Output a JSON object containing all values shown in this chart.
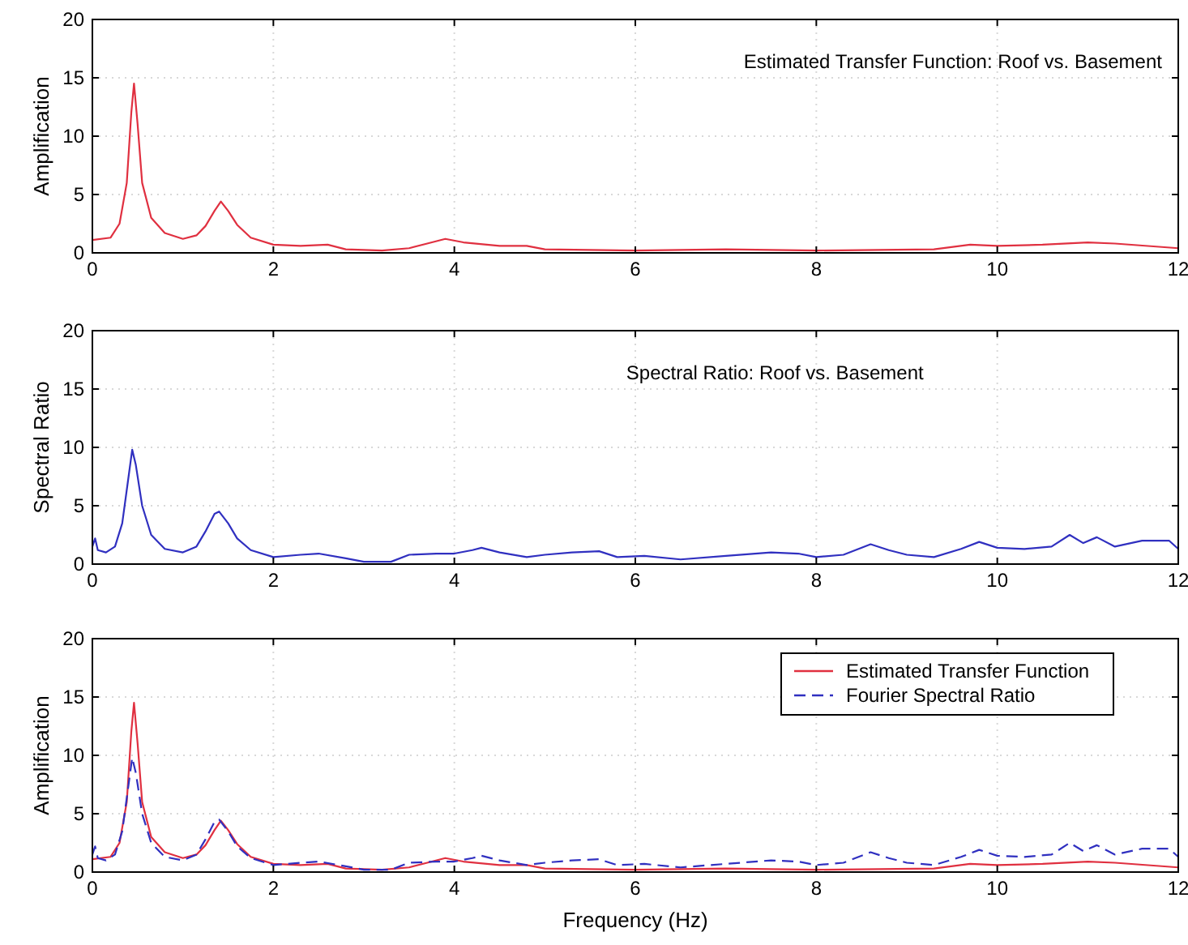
{
  "chart_data": [
    {
      "type": "line",
      "ylabel": "Amplification",
      "annotations": [
        "Estimated Transfer Function: Roof vs. Basement"
      ],
      "xlim": [
        0,
        12
      ],
      "xticks": [
        0,
        2,
        4,
        6,
        8,
        10,
        12
      ],
      "ylim": [
        0,
        20
      ],
      "yticks": [
        0,
        5,
        10,
        15,
        20
      ],
      "grid": true,
      "legend": false,
      "series": [
        {
          "color": "#e03040",
          "x": [
            0,
            0.2,
            0.3,
            0.38,
            0.43,
            0.46,
            0.5,
            0.55,
            0.65,
            0.8,
            1.0,
            1.15,
            1.25,
            1.35,
            1.42,
            1.5,
            1.6,
            1.75,
            2.0,
            2.3,
            2.6,
            2.8,
            3.2,
            3.5,
            3.7,
            3.9,
            4.1,
            4.5,
            4.8,
            5.0,
            6,
            7,
            8,
            9.3,
            9.7,
            10,
            10.5,
            11,
            11.3,
            12
          ],
          "values": [
            1.1,
            1.3,
            2.5,
            6,
            12,
            14.5,
            11,
            6,
            3,
            1.7,
            1.2,
            1.5,
            2.3,
            3.6,
            4.4,
            3.6,
            2.4,
            1.3,
            0.7,
            0.6,
            0.7,
            0.3,
            0.2,
            0.4,
            0.8,
            1.2,
            0.9,
            0.6,
            0.6,
            0.3,
            0.2,
            0.3,
            0.2,
            0.3,
            0.7,
            0.6,
            0.7,
            0.9,
            0.8,
            0.4
          ]
        }
      ]
    },
    {
      "type": "line",
      "ylabel": "Spectral Ratio",
      "annotations": [
        "Spectral Ratio: Roof vs. Basement"
      ],
      "xlim": [
        0,
        12
      ],
      "xticks": [
        0,
        2,
        4,
        6,
        8,
        10,
        12
      ],
      "ylim": [
        0,
        20
      ],
      "yticks": [
        0,
        5,
        10,
        15,
        20
      ],
      "grid": true,
      "legend": false,
      "series": [
        {
          "color": "#3030c0",
          "x": [
            0,
            0.03,
            0.06,
            0.15,
            0.25,
            0.33,
            0.4,
            0.44,
            0.48,
            0.55,
            0.65,
            0.8,
            1.0,
            1.15,
            1.25,
            1.35,
            1.4,
            1.5,
            1.6,
            1.75,
            2.0,
            2.3,
            2.5,
            2.8,
            3.0,
            3.3,
            3.5,
            3.8,
            4.0,
            4.2,
            4.3,
            4.5,
            4.8,
            5.0,
            5.3,
            5.6,
            5.8,
            6.1,
            6.5,
            7.0,
            7.5,
            7.8,
            8.0,
            8.3,
            8.6,
            8.8,
            9.0,
            9.3,
            9.6,
            9.8,
            10.0,
            10.3,
            10.6,
            10.8,
            10.95,
            11.1,
            11.3,
            11.6,
            11.9,
            12
          ],
          "values": [
            1.5,
            2.2,
            1.2,
            1.0,
            1.5,
            3.5,
            7.5,
            9.8,
            8.5,
            5,
            2.5,
            1.3,
            1.0,
            1.5,
            2.8,
            4.3,
            4.5,
            3.5,
            2.2,
            1.2,
            0.6,
            0.8,
            0.9,
            0.5,
            0.2,
            0.2,
            0.8,
            0.9,
            0.9,
            1.2,
            1.4,
            1.0,
            0.6,
            0.8,
            1.0,
            1.1,
            0.6,
            0.7,
            0.4,
            0.7,
            1.0,
            0.9,
            0.6,
            0.8,
            1.7,
            1.2,
            0.8,
            0.6,
            1.3,
            1.9,
            1.4,
            1.3,
            1.5,
            2.5,
            1.8,
            2.3,
            1.5,
            2.0,
            2.0,
            1.3
          ]
        }
      ]
    },
    {
      "type": "line",
      "xlabel": "Frequency (Hz)",
      "ylabel": "Amplification",
      "xlim": [
        0,
        12
      ],
      "xticks": [
        0,
        2,
        4,
        6,
        8,
        10,
        12
      ],
      "ylim": [
        0,
        20
      ],
      "yticks": [
        0,
        5,
        10,
        15,
        20
      ],
      "grid": true,
      "legend": "top right",
      "series": [
        {
          "name": "Estimated Transfer Function",
          "color": "#e03040",
          "line_style": "solid",
          "x": [
            0,
            0.2,
            0.3,
            0.38,
            0.43,
            0.46,
            0.5,
            0.55,
            0.65,
            0.8,
            1.0,
            1.15,
            1.25,
            1.35,
            1.42,
            1.5,
            1.6,
            1.75,
            2.0,
            2.3,
            2.6,
            2.8,
            3.2,
            3.5,
            3.7,
            3.9,
            4.1,
            4.5,
            4.8,
            5.0,
            6,
            7,
            8,
            9.3,
            9.7,
            10,
            10.5,
            11,
            11.3,
            12
          ],
          "values": [
            1.1,
            1.3,
            2.5,
            6,
            12,
            14.5,
            11,
            6,
            3,
            1.7,
            1.2,
            1.5,
            2.3,
            3.6,
            4.4,
            3.6,
            2.4,
            1.3,
            0.7,
            0.6,
            0.7,
            0.3,
            0.2,
            0.4,
            0.8,
            1.2,
            0.9,
            0.6,
            0.6,
            0.3,
            0.2,
            0.3,
            0.2,
            0.3,
            0.7,
            0.6,
            0.7,
            0.9,
            0.8,
            0.4
          ]
        },
        {
          "name": "Fourier Spectral Ratio",
          "color": "#3030c0",
          "line_style": "dashed",
          "x": [
            0,
            0.03,
            0.06,
            0.15,
            0.25,
            0.33,
            0.4,
            0.44,
            0.48,
            0.55,
            0.65,
            0.8,
            1.0,
            1.15,
            1.25,
            1.35,
            1.4,
            1.5,
            1.6,
            1.75,
            2.0,
            2.3,
            2.5,
            2.8,
            3.0,
            3.3,
            3.5,
            3.8,
            4.0,
            4.2,
            4.3,
            4.5,
            4.8,
            5.0,
            5.3,
            5.6,
            5.8,
            6.1,
            6.5,
            7.0,
            7.5,
            7.8,
            8.0,
            8.3,
            8.6,
            8.8,
            9.0,
            9.3,
            9.6,
            9.8,
            10.0,
            10.3,
            10.6,
            10.8,
            10.95,
            11.1,
            11.3,
            11.6,
            11.9,
            12
          ],
          "values": [
            1.5,
            2.2,
            1.2,
            1.0,
            1.5,
            3.5,
            7.5,
            9.8,
            8.5,
            5,
            2.5,
            1.3,
            1.0,
            1.5,
            2.8,
            4.3,
            4.5,
            3.5,
            2.2,
            1.2,
            0.6,
            0.8,
            0.9,
            0.5,
            0.2,
            0.2,
            0.8,
            0.9,
            0.9,
            1.2,
            1.4,
            1.0,
            0.6,
            0.8,
            1.0,
            1.1,
            0.6,
            0.7,
            0.4,
            0.7,
            1.0,
            0.9,
            0.6,
            0.8,
            1.7,
            1.2,
            0.8,
            0.6,
            1.3,
            1.9,
            1.4,
            1.3,
            1.5,
            2.5,
            1.8,
            2.3,
            1.5,
            2.0,
            2.0,
            1.3
          ]
        }
      ]
    }
  ]
}
